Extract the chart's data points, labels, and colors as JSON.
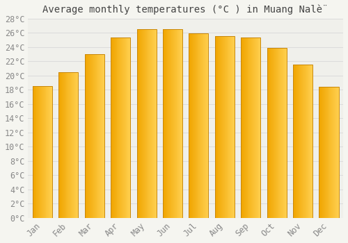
{
  "title": "Average monthly temperatures (°C ) in Muang Nalè̈",
  "months": [
    "Jan",
    "Feb",
    "Mar",
    "Apr",
    "May",
    "Jun",
    "Jul",
    "Aug",
    "Sep",
    "Oct",
    "Nov",
    "Dec"
  ],
  "values": [
    18.5,
    20.5,
    23.0,
    25.3,
    26.5,
    26.5,
    25.9,
    25.5,
    25.3,
    23.9,
    21.5,
    18.4
  ],
  "bar_color_left": "#F0A500",
  "bar_color_right": "#FFD050",
  "bar_edge_color": "#C8870A",
  "ylim": [
    0,
    28
  ],
  "ytick_step": 2,
  "background_color": "#f5f5f0",
  "plot_bg_color": "#f0f0eb",
  "grid_color": "#d8d8d8",
  "title_fontsize": 10,
  "tick_fontsize": 8.5,
  "title_color": "#444444",
  "tick_color": "#888888"
}
